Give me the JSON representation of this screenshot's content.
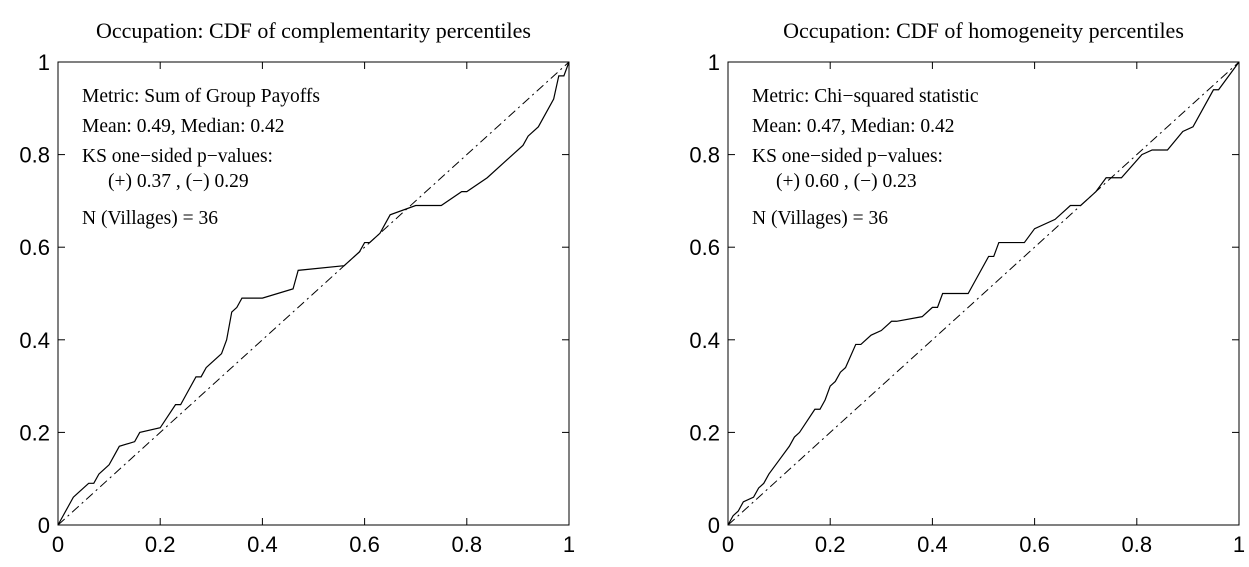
{
  "chart_data": [
    {
      "type": "line",
      "title": "Occupation: CDF of complementarity percentiles",
      "xlim": [
        0,
        1
      ],
      "ylim": [
        0,
        1
      ],
      "xticks": [
        "0",
        "0.2",
        "0.4",
        "0.6",
        "0.8",
        "1"
      ],
      "yticks": [
        "0",
        "0.2",
        "0.4",
        "0.6",
        "0.8",
        "1"
      ],
      "grid": false,
      "annotations": [
        "Metric: Sum of Group Payoffs",
        "Mean:  0.49,  Median:  0.42",
        "KS one−sided p−values:",
        "(+) 0.37 ,  (−) 0.29",
        "N (Villages) = 36"
      ],
      "series": [
        {
          "style": "solid",
          "x": [
            0,
            0.01,
            0.02,
            0.03,
            0.04,
            0.06,
            0.07,
            0.08,
            0.09,
            0.1,
            0.11,
            0.12,
            0.15,
            0.16,
            0.2,
            0.23,
            0.24,
            0.25,
            0.27,
            0.28,
            0.29,
            0.3,
            0.31,
            0.32,
            0.33,
            0.34,
            0.35,
            0.36,
            0.4,
            0.46,
            0.47,
            0.56,
            0.57,
            0.59,
            0.6,
            0.61,
            0.62,
            0.63,
            0.65,
            0.7,
            0.75,
            0.79,
            0.8,
            0.84,
            0.87,
            0.88,
            0.91,
            0.92,
            0.94,
            0.95,
            0.96,
            0.97,
            0.98,
            0.99,
            1.0
          ],
          "y": [
            0,
            0.02,
            0.04,
            0.06,
            0.07,
            0.09,
            0.09,
            0.11,
            0.12,
            0.13,
            0.15,
            0.17,
            0.18,
            0.2,
            0.21,
            0.26,
            0.26,
            0.28,
            0.32,
            0.32,
            0.34,
            0.35,
            0.36,
            0.37,
            0.4,
            0.46,
            0.47,
            0.49,
            0.49,
            0.51,
            0.55,
            0.56,
            0.57,
            0.59,
            0.61,
            0.61,
            0.62,
            0.63,
            0.67,
            0.69,
            0.69,
            0.72,
            0.72,
            0.75,
            0.78,
            0.79,
            0.82,
            0.84,
            0.86,
            0.88,
            0.9,
            0.92,
            0.97,
            0.97,
            1.0
          ]
        },
        {
          "style": "dash-dot",
          "x": [
            0,
            1
          ],
          "y": [
            0,
            1
          ]
        }
      ]
    },
    {
      "type": "line",
      "title": "Occupation: CDF of homogeneity percentiles",
      "xlim": [
        0,
        1
      ],
      "ylim": [
        0,
        1
      ],
      "xticks": [
        "0",
        "0.2",
        "0.4",
        "0.6",
        "0.8",
        "1"
      ],
      "yticks": [
        "0",
        "0.2",
        "0.4",
        "0.6",
        "0.8",
        "1"
      ],
      "grid": false,
      "annotations": [
        "Metric: Chi−squared statistic",
        "Mean:  0.47,  Median:  0.42",
        "KS one−sided p−values:",
        "(+) 0.60 ,  (−) 0.23",
        "N (Villages) = 36"
      ],
      "series": [
        {
          "style": "solid",
          "x": [
            0,
            0.01,
            0.02,
            0.03,
            0.05,
            0.06,
            0.07,
            0.08,
            0.1,
            0.12,
            0.13,
            0.14,
            0.17,
            0.18,
            0.19,
            0.2,
            0.21,
            0.22,
            0.23,
            0.25,
            0.26,
            0.28,
            0.3,
            0.32,
            0.33,
            0.38,
            0.4,
            0.41,
            0.42,
            0.47,
            0.48,
            0.51,
            0.52,
            0.53,
            0.58,
            0.6,
            0.64,
            0.66,
            0.67,
            0.69,
            0.7,
            0.72,
            0.74,
            0.77,
            0.81,
            0.83,
            0.86,
            0.89,
            0.91,
            0.95,
            0.96,
            0.98,
            1.0
          ],
          "y": [
            0,
            0.02,
            0.03,
            0.05,
            0.06,
            0.08,
            0.09,
            0.11,
            0.14,
            0.17,
            0.19,
            0.2,
            0.25,
            0.25,
            0.27,
            0.3,
            0.31,
            0.33,
            0.34,
            0.39,
            0.39,
            0.41,
            0.42,
            0.44,
            0.44,
            0.45,
            0.47,
            0.47,
            0.5,
            0.5,
            0.52,
            0.58,
            0.58,
            0.61,
            0.61,
            0.64,
            0.66,
            0.68,
            0.69,
            0.69,
            0.7,
            0.72,
            0.75,
            0.75,
            0.8,
            0.81,
            0.81,
            0.85,
            0.86,
            0.94,
            0.94,
            0.97,
            1.0
          ]
        },
        {
          "style": "dash-dot",
          "x": [
            0,
            1
          ],
          "y": [
            0,
            1
          ]
        }
      ]
    }
  ]
}
